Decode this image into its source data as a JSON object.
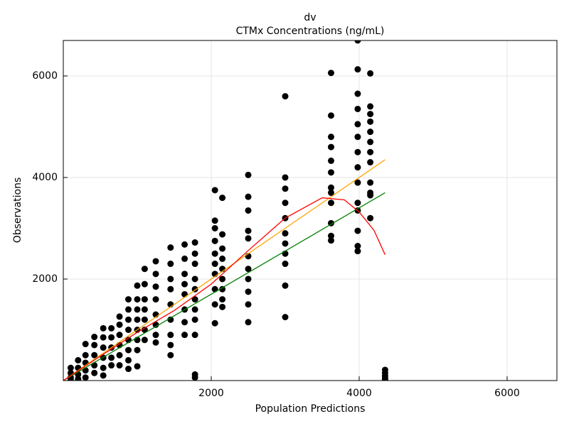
{
  "chart_data": {
    "type": "scatter",
    "title": "dv",
    "subtitle": "CTMx Concentrations (ng/mL)",
    "x_label": "Population Predictions",
    "y_label": "Observations",
    "xlim": [
      0,
      6673
    ],
    "ylim": [
      0,
      6699
    ],
    "xticks": [
      2000,
      4000,
      6000
    ],
    "yticks": [
      2000,
      4000,
      6000
    ],
    "grid": true,
    "series": [
      {
        "mode": "markers",
        "color": "#000000",
        "x": [
          4350,
          4350,
          4350,
          4350,
          4350,
          4150,
          4150,
          4150,
          4150,
          4150,
          4150,
          4150,
          4150,
          4150,
          4150,
          4150,
          4150,
          3980,
          3980,
          3980,
          3980,
          3980,
          3980,
          3980,
          3980,
          3980,
          3980,
          3980,
          3980,
          3980,
          3980,
          3620,
          3620,
          3620,
          3620,
          3620,
          3620,
          3620,
          3620,
          3620,
          3620,
          3620,
          3620,
          3000,
          3000,
          3000,
          3000,
          3000,
          3000,
          3000,
          3000,
          3000,
          3000,
          3000,
          2500,
          2500,
          2500,
          2500,
          2500,
          2500,
          2500,
          2500,
          2500,
          2500,
          2500,
          2150,
          2150,
          2150,
          2150,
          2150,
          2150,
          2150,
          2150,
          2150,
          2050,
          2050,
          2050,
          2050,
          2050,
          2050,
          2050,
          2050,
          2050,
          2050,
          1780,
          1780,
          1780,
          1780,
          1780,
          1780,
          1780,
          1780,
          1780,
          1780,
          1780,
          1640,
          1640,
          1640,
          1640,
          1640,
          1640,
          1640,
          1640,
          1450,
          1450,
          1450,
          1450,
          1450,
          1450,
          1450,
          1450,
          1450,
          1250,
          1250,
          1250,
          1250,
          1250,
          1250,
          1250,
          1250,
          1100,
          1100,
          1100,
          1100,
          1100,
          1100,
          1100,
          1000,
          1000,
          1000,
          1000,
          1000,
          1000,
          1000,
          1000,
          880,
          880,
          880,
          880,
          880,
          880,
          880,
          880,
          760,
          760,
          760,
          760,
          760,
          760,
          650,
          650,
          650,
          650,
          650,
          540,
          540,
          540,
          540,
          540,
          540,
          420,
          420,
          420,
          420,
          420,
          300,
          300,
          300,
          300,
          300,
          200,
          200,
          200,
          200,
          100,
          100,
          100,
          100
        ],
        "values": [
          210,
          150,
          90,
          40,
          10,
          6050,
          5400,
          5250,
          5100,
          4900,
          4700,
          4500,
          4300,
          3900,
          3700,
          3650,
          3200,
          6700,
          6130,
          5650,
          5350,
          5050,
          4800,
          4500,
          4200,
          3900,
          3500,
          3350,
          2950,
          2650,
          2550,
          6060,
          5220,
          4800,
          4600,
          4330,
          4100,
          3800,
          3700,
          3500,
          3100,
          2850,
          2760,
          5600,
          4000,
          3780,
          3500,
          3200,
          2900,
          2700,
          2500,
          2300,
          1870,
          1250,
          4050,
          3620,
          3350,
          2950,
          2800,
          2450,
          2200,
          2000,
          1750,
          1500,
          1150,
          3600,
          2880,
          2600,
          2400,
          2200,
          2000,
          1800,
          1600,
          1450,
          3750,
          3150,
          3000,
          2750,
          2500,
          2300,
          2100,
          1800,
          1500,
          1130,
          2720,
          2500,
          2300,
          2000,
          1800,
          1600,
          1400,
          1200,
          900,
          120,
          60,
          2680,
          2400,
          2100,
          1900,
          1700,
          1400,
          1150,
          900,
          2620,
          2300,
          2000,
          1800,
          1500,
          1200,
          900,
          700,
          500,
          2350,
          2100,
          1850,
          1600,
          1300,
          1100,
          900,
          750,
          2200,
          1900,
          1600,
          1400,
          1200,
          1000,
          800,
          1870,
          1600,
          1400,
          1200,
          1000,
          800,
          600,
          280,
          1600,
          1400,
          1200,
          1000,
          800,
          600,
          400,
          230,
          1260,
          1100,
          900,
          700,
          500,
          300,
          1030,
          850,
          650,
          450,
          300,
          1030,
          850,
          650,
          450,
          250,
          100,
          860,
          700,
          500,
          300,
          150,
          720,
          500,
          350,
          200,
          60,
          400,
          250,
          120,
          30,
          250,
          150,
          60,
          10
        ]
      },
      {
        "mode": "line",
        "color": "#ffa500",
        "x": [
          0,
          4350
        ],
        "values": [
          0,
          4350
        ]
      },
      {
        "mode": "line",
        "color": "#008000",
        "x": [
          0,
          4350
        ],
        "values": [
          0,
          3700
        ]
      },
      {
        "mode": "line",
        "color": "#ff0000",
        "x": [
          0,
          500,
          1000,
          1500,
          2000,
          2500,
          3000,
          3500,
          3800,
          4000,
          4200,
          4350
        ],
        "values": [
          0,
          480,
          950,
          1380,
          1900,
          2560,
          3200,
          3600,
          3560,
          3320,
          2960,
          2480
        ]
      }
    ]
  }
}
